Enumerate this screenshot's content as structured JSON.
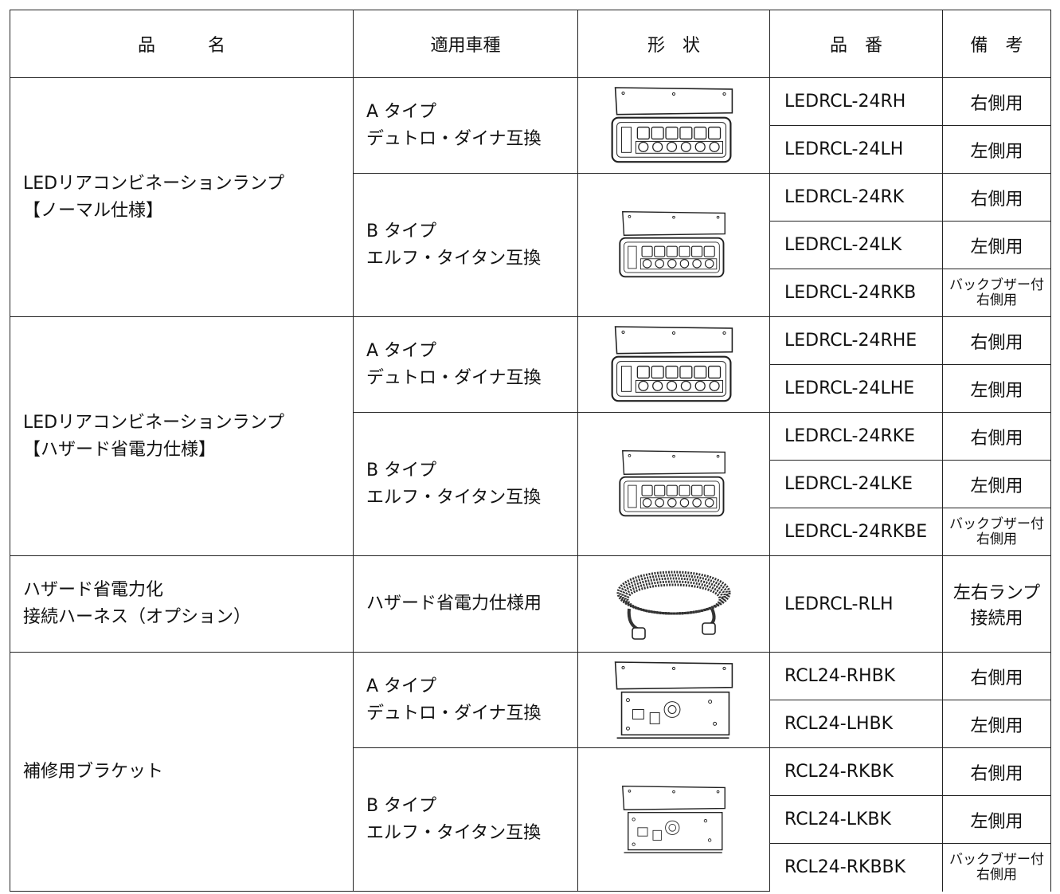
{
  "header": [
    "品　　　名",
    "適用車種",
    "形　状",
    "品　番",
    "備　考"
  ],
  "groups": [
    {
      "name": [
        "LEDリアコンビネーションランプ",
        "【ノーマル仕様】"
      ],
      "subgroups": [
        {
          "vehicle": [
            "A タイプ",
            "デュトロ・ダイナ互換"
          ],
          "items": [
            {
              "part": "LEDRCL-24RH",
              "note": [
                "右側用"
              ]
            },
            {
              "part": "LEDRCL-24LH",
              "note": [
                "左側用"
              ]
            }
          ]
        },
        {
          "vehicle": [
            "B タイプ",
            "エルフ・タイタン互換"
          ],
          "items": [
            {
              "part": "LEDRCL-24RK",
              "note": [
                "右側用"
              ]
            },
            {
              "part": "LEDRCL-24LK",
              "note": [
                "左側用"
              ]
            },
            {
              "part": "LEDRCL-24RKB",
              "note": [
                "バックブザー付",
                "右側用"
              ]
            }
          ]
        }
      ]
    },
    {
      "name": [
        "LEDリアコンビネーションランプ",
        "【ハザード省電力仕様】"
      ],
      "subgroups": [
        {
          "vehicle": [
            "A タイプ",
            "デュトロ・ダイナ互換"
          ],
          "items": [
            {
              "part": "LEDRCL-24RHE",
              "note": [
                "右側用"
              ]
            },
            {
              "part": "LEDRCL-24LHE",
              "note": [
                "左側用"
              ]
            }
          ]
        },
        {
          "vehicle": [
            "B タイプ",
            "エルフ・タイタン互換"
          ],
          "items": [
            {
              "part": "LEDRCL-24RKE",
              "note": [
                "右側用"
              ]
            },
            {
              "part": "LEDRCL-24LKE",
              "note": [
                "左側用"
              ]
            },
            {
              "part": "LEDRCL-24RKBE",
              "note": [
                "バックブザー付",
                "右側用"
              ]
            }
          ]
        }
      ]
    },
    {
      "name": [
        "ハザード省電力化",
        "接続ハーネス（オプション）"
      ],
      "subgroups": [
        {
          "vehicle": [
            "ハザード省電力仕様用"
          ],
          "items": [
            {
              "part": "LEDRCL-RLH",
              "note": [
                "左右ランプ",
                "接続用"
              ]
            }
          ]
        }
      ]
    },
    {
      "name": [
        "補修用ブラケット"
      ],
      "subgroups": [
        {
          "vehicle": [
            "A タイプ",
            "デュトロ・ダイナ互換"
          ],
          "items": [
            {
              "part": "RCL24-RHBK",
              "note": [
                "右側用"
              ]
            },
            {
              "part": "RCL24-LHBK",
              "note": [
                "左側用"
              ]
            }
          ]
        },
        {
          "vehicle": [
            "B タイプ",
            "エルフ・タイタン互換"
          ],
          "items": [
            {
              "part": "RCL24-RKBK",
              "note": [
                "右側用"
              ]
            },
            {
              "part": "RCL24-LKBK",
              "note": [
                "左側用"
              ]
            },
            {
              "part": "RCL24-RKBBK",
              "note": [
                "バックブザー付",
                "右側用"
              ]
            }
          ]
        }
      ]
    }
  ]
}
